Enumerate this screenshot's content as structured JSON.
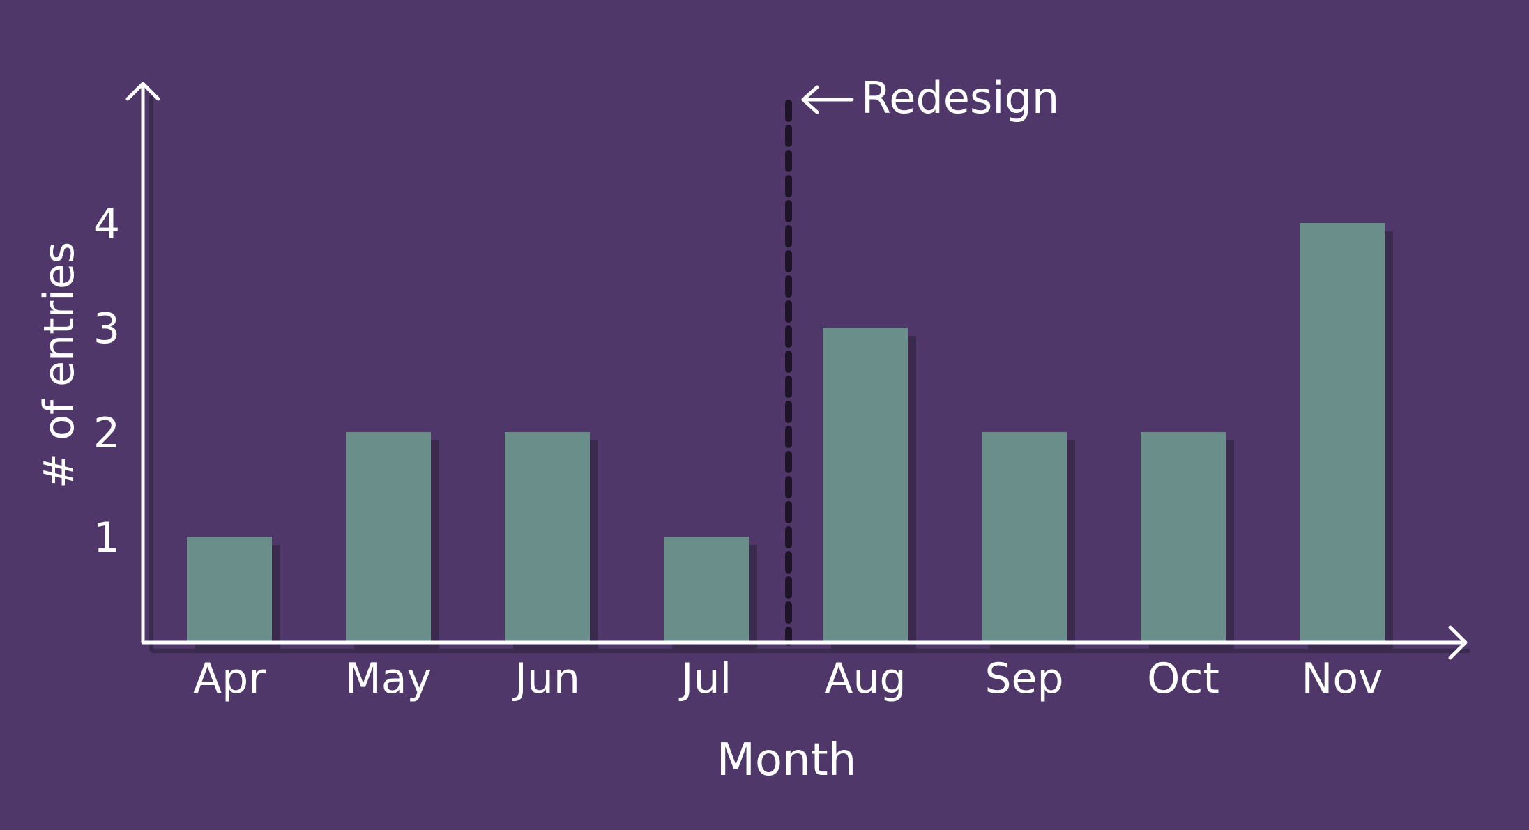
{
  "colors": {
    "background": "#4f3869",
    "bar": "#6a8f8b",
    "shadow": "#3a2a4e",
    "axis": "#ffffff",
    "marker": "#1e1428"
  },
  "chart_data": {
    "type": "bar",
    "categories": [
      "Apr",
      "May",
      "Jun",
      "Jul",
      "Aug",
      "Sep",
      "Oct",
      "Nov"
    ],
    "values": [
      1,
      2,
      2,
      1,
      3,
      2,
      2,
      4
    ],
    "xlabel": "Month",
    "ylabel": "# of entries",
    "yticks": [
      "1",
      "2",
      "3",
      "4"
    ],
    "ylim": [
      0,
      4.4
    ],
    "grid": false,
    "annotation": {
      "text": "Redesign",
      "between": [
        "Jul",
        "Aug"
      ]
    }
  }
}
